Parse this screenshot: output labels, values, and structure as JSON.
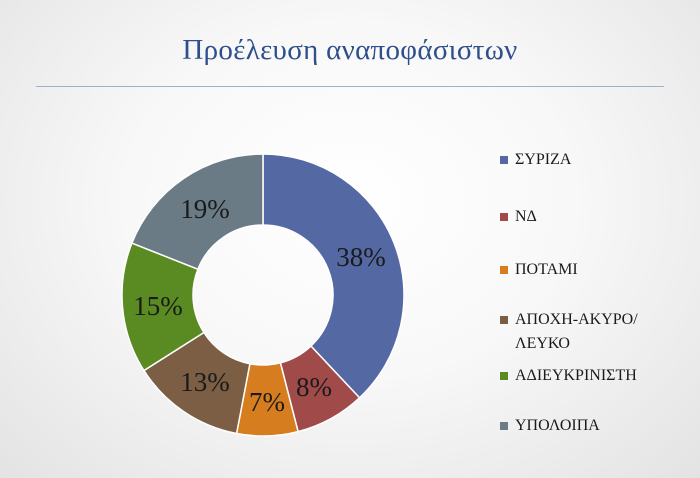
{
  "slide": {
    "title": "Προέλευση αναποφάσιστων"
  },
  "chart_data": {
    "type": "pie",
    "variant": "doughnut",
    "categories": [
      "ΣΥΡΙΖΑ",
      "ΝΔ",
      "ΠΟΤΑΜΙ",
      "ΑΠΟΧΗ-ΑΚΥΡΟ/ΛΕΥΚΟ",
      "ΑΔΙΕΥΚΡΙΝΙΣΤΗ",
      "ΥΠΟΛΟΙΠΑ"
    ],
    "values": [
      38,
      8,
      7,
      13,
      15,
      19
    ],
    "value_labels": [
      "38%",
      "8%",
      "7%",
      "13%",
      "15%",
      "19%"
    ],
    "colors": [
      "#5468a4",
      "#a04b4a",
      "#d67d1f",
      "#7b5e44",
      "#5a8a22",
      "#6a7b86"
    ],
    "legend": "right",
    "title": "Προέλευση αναποφάσιστων"
  },
  "legend": {
    "items": [
      {
        "label": "ΣΥΡΙΖΑ",
        "color": "#5468a4"
      },
      {
        "label": "ΝΔ",
        "color": "#a04b4a"
      },
      {
        "label": "ΠΟΤΑΜΙ",
        "color": "#d67d1f"
      },
      {
        "label": "ΑΠΟΧΗ-ΑΚΥΡΟ/ΛΕΥΚΟ",
        "color": "#7b5e44"
      },
      {
        "label": "ΑΔΙΕΥΚΡΙΝΙΣΤΗ",
        "color": "#5a8a22"
      },
      {
        "label": "ΥΠΟΛΟΙΠΑ",
        "color": "#6a7b86"
      }
    ]
  }
}
